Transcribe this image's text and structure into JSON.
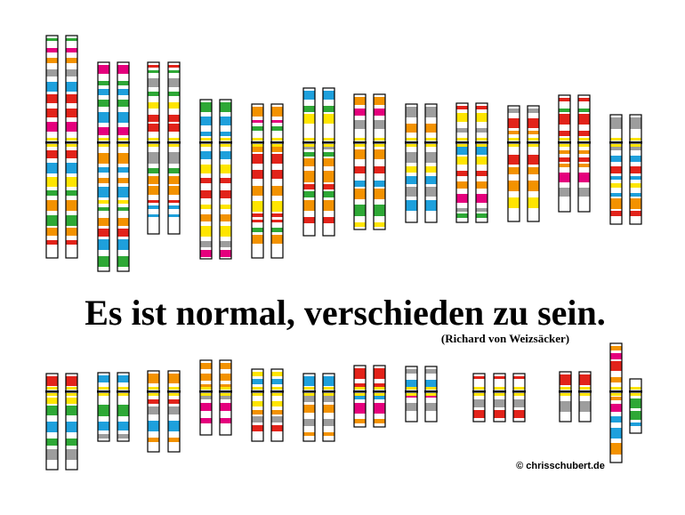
{
  "quote": "Es ist normal, verschieden zu sein.",
  "attribution": "(Richard von Weizsäcker)",
  "copyright": "© chrisschubert.de"
}
